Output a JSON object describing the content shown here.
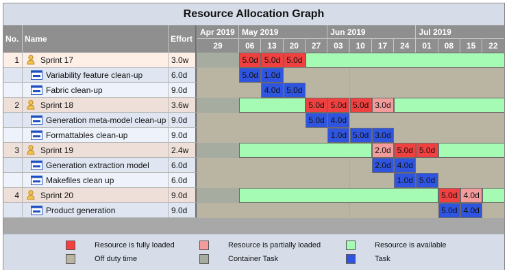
{
  "title": "Resource Allocation Graph",
  "columns": {
    "no": "No.",
    "name": "Name",
    "effort": "Effort"
  },
  "months": [
    "Apr 2019",
    "May 2019",
    "Jun 2019",
    "Jul 2019"
  ],
  "weeks": [
    "29",
    "06",
    "13",
    "20",
    "27",
    "03",
    "10",
    "17",
    "24",
    "01",
    "08",
    "15",
    "22"
  ],
  "rows": [
    {
      "kind": "summary",
      "no": "1",
      "name": "Sprint 17",
      "effort": "3.0w",
      "icon": "person-icon",
      "bars": [
        {
          "start": 1,
          "len": 1,
          "state": "full",
          "label": "5.0d"
        },
        {
          "start": 2,
          "len": 1,
          "state": "full",
          "label": "5.0d"
        },
        {
          "start": 3,
          "len": 1,
          "state": "full",
          "label": "5.0d"
        },
        {
          "start": 4,
          "len": 9,
          "state": "available",
          "label": ""
        }
      ]
    },
    {
      "kind": "task",
      "no": "",
      "name": "Variability feature clean-up",
      "effort": "6.0d",
      "icon": "task-icon",
      "bars": [
        {
          "start": 1,
          "len": 1,
          "state": "task",
          "label": "5.0d"
        },
        {
          "start": 2,
          "len": 1,
          "state": "task",
          "label": "1.0d"
        }
      ]
    },
    {
      "kind": "task",
      "no": "",
      "name": "Fabric clean-up",
      "effort": "9.0d",
      "icon": "task-icon",
      "bars": [
        {
          "start": 2,
          "len": 1,
          "state": "task",
          "label": "4.0d"
        },
        {
          "start": 3,
          "len": 1,
          "state": "task",
          "label": "5.0d"
        }
      ]
    },
    {
      "kind": "summary",
      "no": "2",
      "name": "Sprint 18",
      "effort": "3.6w",
      "icon": "person-icon",
      "bars": [
        {
          "start": 1,
          "len": 3,
          "state": "available",
          "label": ""
        },
        {
          "start": 4,
          "len": 1,
          "state": "full",
          "label": "5.0d"
        },
        {
          "start": 5,
          "len": 1,
          "state": "full",
          "label": "5.0d"
        },
        {
          "start": 6,
          "len": 1,
          "state": "full",
          "label": "5.0d"
        },
        {
          "start": 7,
          "len": 1,
          "state": "partial",
          "label": "3.0d"
        },
        {
          "start": 8,
          "len": 5,
          "state": "available",
          "label": ""
        }
      ]
    },
    {
      "kind": "task",
      "no": "",
      "name": "Generation meta-model clean-up",
      "effort": "9.0d",
      "icon": "task-icon",
      "bars": [
        {
          "start": 4,
          "len": 1,
          "state": "task",
          "label": "5.0d"
        },
        {
          "start": 5,
          "len": 1,
          "state": "task",
          "label": "4.0d"
        }
      ]
    },
    {
      "kind": "task",
      "no": "",
      "name": "Formattables clean-up",
      "effort": "9.0d",
      "icon": "task-icon",
      "bars": [
        {
          "start": 5,
          "len": 1,
          "state": "task",
          "label": "1.0d"
        },
        {
          "start": 6,
          "len": 1,
          "state": "task",
          "label": "5.0d"
        },
        {
          "start": 7,
          "len": 1,
          "state": "task",
          "label": "3.0d"
        }
      ]
    },
    {
      "kind": "summary",
      "no": "3",
      "name": "Sprint 19",
      "effort": "2.4w",
      "icon": "person-icon",
      "bars": [
        {
          "start": 1,
          "len": 6,
          "state": "available",
          "label": ""
        },
        {
          "start": 7,
          "len": 1,
          "state": "partial",
          "label": "2.0d"
        },
        {
          "start": 8,
          "len": 1,
          "state": "full",
          "label": "5.0d"
        },
        {
          "start": 9,
          "len": 1,
          "state": "full",
          "label": "5.0d"
        },
        {
          "start": 10,
          "len": 3,
          "state": "available",
          "label": ""
        }
      ]
    },
    {
      "kind": "task",
      "no": "",
      "name": "Generation extraction model",
      "effort": "6.0d",
      "icon": "task-icon",
      "bars": [
        {
          "start": 7,
          "len": 1,
          "state": "task",
          "label": "2.0d"
        },
        {
          "start": 8,
          "len": 1,
          "state": "task",
          "label": "4.0d"
        }
      ]
    },
    {
      "kind": "task",
      "no": "",
      "name": "Makefiles clean up",
      "effort": "6.0d",
      "icon": "task-icon",
      "bars": [
        {
          "start": 8,
          "len": 1,
          "state": "task",
          "label": "1.0d"
        },
        {
          "start": 9,
          "len": 1,
          "state": "task",
          "label": "5.0d"
        }
      ]
    },
    {
      "kind": "summary",
      "no": "4",
      "name": "Sprint 20",
      "effort": "9.0d",
      "icon": "person-icon",
      "bars": [
        {
          "start": 1,
          "len": 9,
          "state": "available",
          "label": ""
        },
        {
          "start": 10,
          "len": 1,
          "state": "full",
          "label": "5.0d"
        },
        {
          "start": 11,
          "len": 1,
          "state": "partial",
          "label": "4.0d"
        },
        {
          "start": 12,
          "len": 1,
          "state": "available",
          "label": ""
        }
      ]
    },
    {
      "kind": "task",
      "no": "",
      "name": "Product generation",
      "effort": "9.0d",
      "icon": "task-icon",
      "bars": [
        {
          "start": 10,
          "len": 1,
          "state": "task",
          "label": "5.0d"
        },
        {
          "start": 11,
          "len": 1,
          "state": "task",
          "label": "4.0d"
        }
      ]
    }
  ],
  "legend": [
    {
      "state": "full",
      "label": "Resource is fully loaded"
    },
    {
      "state": "partial",
      "label": "Resource is partially loaded"
    },
    {
      "state": "available",
      "label": "Resource is available"
    },
    {
      "state": "offduty",
      "label": "Off duty time"
    },
    {
      "state": "container",
      "label": "Container Task"
    },
    {
      "state": "task",
      "label": "Task"
    }
  ],
  "colors": {
    "full": "#f04040",
    "partial": "#f49c9c",
    "available": "#a6fbb4",
    "offduty": "#bab5a2",
    "container": "#a6aca0",
    "task": "#2f55e0"
  }
}
